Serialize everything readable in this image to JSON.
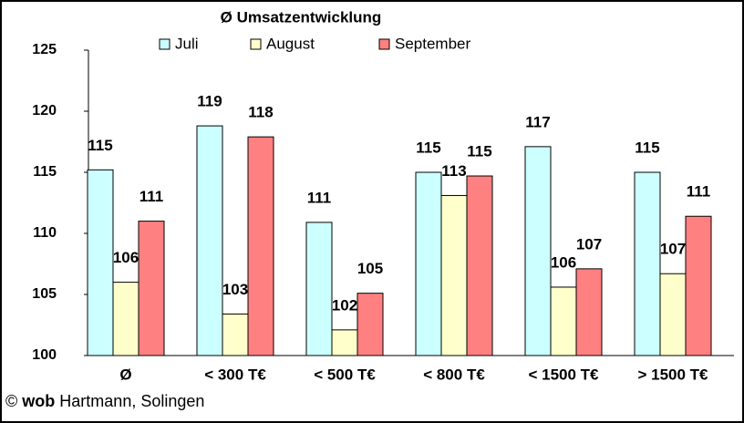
{
  "chart_data": {
    "type": "bar",
    "title": "Ø Umsatzentwicklung",
    "categories": [
      "Ø",
      "< 300 T€",
      "< 500 T€",
      "< 800 T€",
      "< 1500 T€",
      "> 1500 T€"
    ],
    "series": [
      {
        "name": "Juli",
        "color": "#ccffff",
        "values": [
          115.2,
          118.8,
          110.9,
          115,
          117.1,
          115
        ],
        "value_labels": [
          "115",
          "119",
          "111",
          "115",
          "117",
          "115"
        ]
      },
      {
        "name": "August",
        "color": "#ffffcc",
        "values": [
          106,
          103.4,
          102.1,
          113.1,
          105.6,
          106.7
        ],
        "value_labels": [
          "106",
          "103",
          "102",
          "113",
          "106",
          "107"
        ]
      },
      {
        "name": "September",
        "color": "#ff8080",
        "values": [
          111,
          117.9,
          105.1,
          114.7,
          107.1,
          111.4
        ],
        "value_labels": [
          "111",
          "118",
          "105",
          "115",
          "107",
          "111"
        ]
      }
    ],
    "ylim": [
      100,
      125
    ],
    "yticks": [
      100,
      105,
      110,
      115,
      120,
      125
    ],
    "grid": false,
    "footer": {
      "prefix": "©",
      "brand": "wob",
      "rest": "Hartmann, Solingen"
    }
  }
}
